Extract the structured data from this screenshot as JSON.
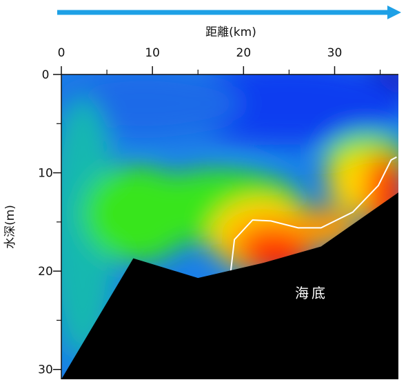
{
  "chart_data": {
    "type": "heatmap",
    "xlabel": "距離(km)",
    "ylabel": "水深(m)",
    "x_ticks": [
      "0",
      "10",
      "20",
      "30"
    ],
    "y_ticks": [
      "0",
      "10",
      "20",
      "30"
    ],
    "xlim": [
      0,
      37
    ],
    "ylim": [
      0,
      31
    ],
    "seafloor_label": "海底",
    "direction_arrow_color": "#1ea0e6",
    "seafloor_profile": [
      {
        "x": 0,
        "y": 31
      },
      {
        "x": 7.9,
        "y": 18.7
      },
      {
        "x": 15,
        "y": 20.7
      },
      {
        "x": 22,
        "y": 19.2
      },
      {
        "x": 28.5,
        "y": 17.5
      },
      {
        "x": 37,
        "y": 12
      }
    ],
    "contour_line": [
      {
        "x": 18.6,
        "y": 20
      },
      {
        "x": 19,
        "y": 16.8
      },
      {
        "x": 21,
        "y": 14.8
      },
      {
        "x": 23,
        "y": 14.9
      },
      {
        "x": 26,
        "y": 15.6
      },
      {
        "x": 28.5,
        "y": 15.6
      },
      {
        "x": 32,
        "y": 14
      },
      {
        "x": 34.8,
        "y": 11.3
      },
      {
        "x": 36.2,
        "y": 8.7
      },
      {
        "x": 36.8,
        "y": 8.4
      }
    ],
    "colorscale": [
      "#1a00b0",
      "#0a3df0",
      "#1a7fe8",
      "#12c2a8",
      "#39e51a",
      "#d6f000",
      "#ffd400",
      "#ff8a00",
      "#ff2a00",
      "#e00000"
    ],
    "grid": false
  }
}
